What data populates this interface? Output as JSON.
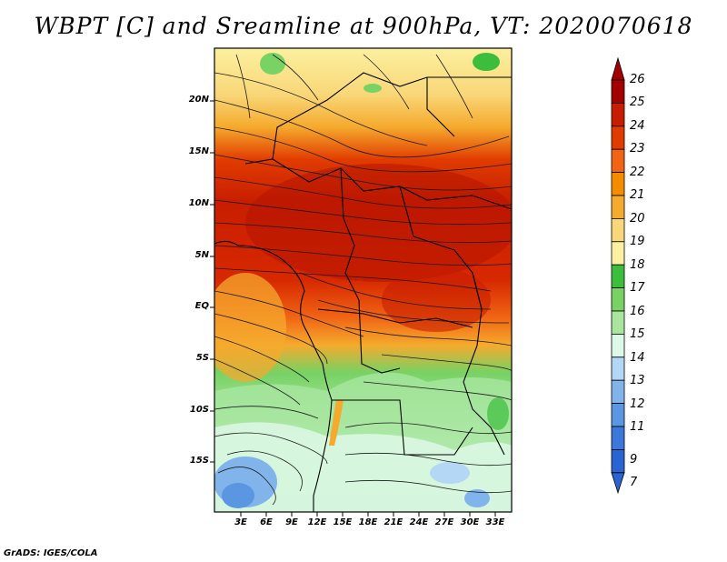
{
  "title": "WBPT [C] and Sreamline at 900hPa, VT: 2020070618",
  "footer": "GrADS: IGES/COLA",
  "axes": {
    "lat_labels": [
      "20N",
      "15N",
      "10N",
      "5N",
      "EQ",
      "5S",
      "10S",
      "15S"
    ],
    "lon_labels": [
      "3E",
      "6E",
      "9E",
      "12E",
      "15E",
      "18E",
      "21E",
      "24E",
      "27E",
      "30E",
      "33E"
    ]
  },
  "colorbar": {
    "labels": [
      "26",
      "25",
      "24",
      "23",
      "22",
      "21",
      "20",
      "19",
      "18",
      "17",
      "16",
      "15",
      "14",
      "13",
      "12",
      "11",
      "9",
      "7"
    ],
    "colors": [
      "#a50000",
      "#c81e00",
      "#e13c00",
      "#f06414",
      "#f58c00",
      "#f5aa2d",
      "#f8d778",
      "#fdf0a0",
      "#3cbe3c",
      "#78d264",
      "#a8e6a0",
      "#ddf8e6",
      "#b4d7f5",
      "#82b4ec",
      "#5a96e1",
      "#3c78dc",
      "#2864d2"
    ]
  },
  "colors": {
    "hot": "#c81e00",
    "warm": "#f5aa2d",
    "cool": "#a8e6a0",
    "cold": "#5a96e1"
  }
}
